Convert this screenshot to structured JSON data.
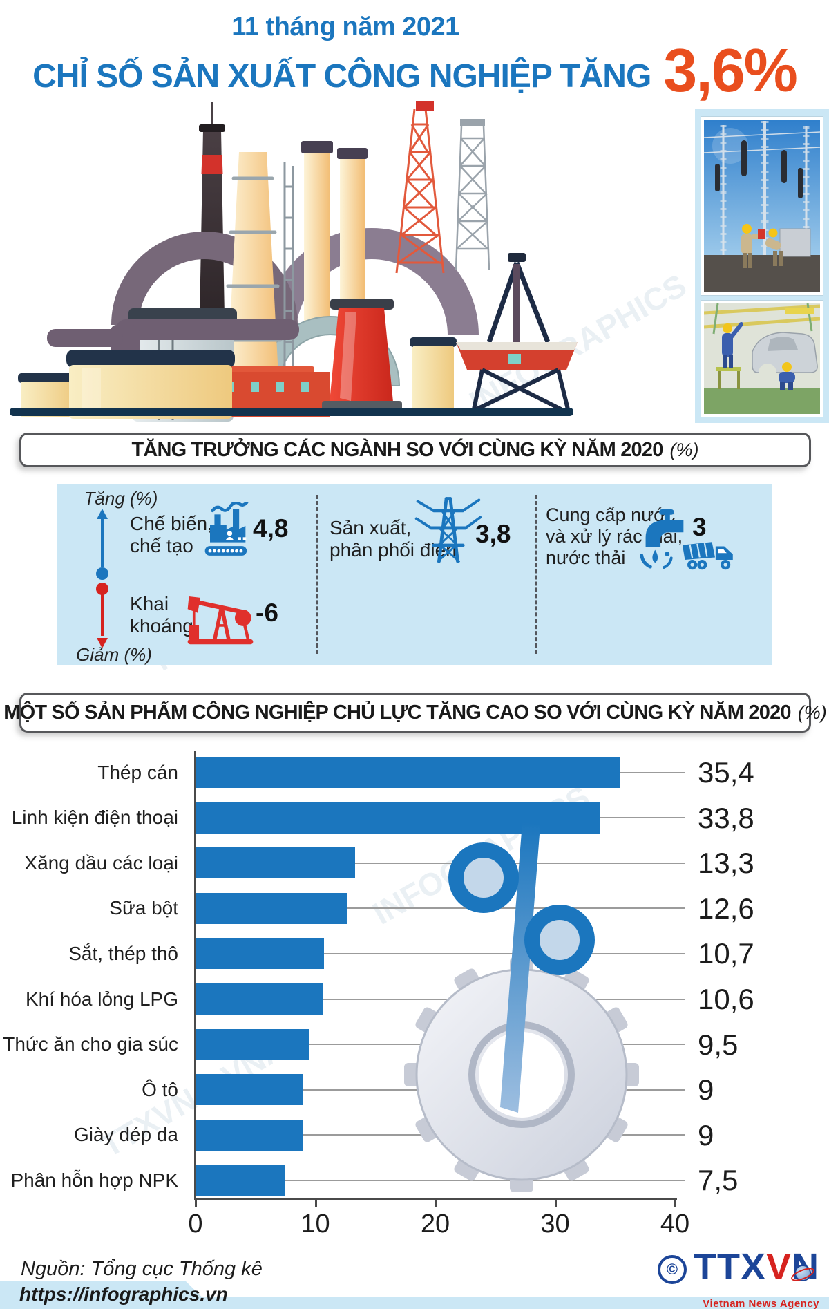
{
  "header": {
    "subtitle": "11 tháng năm 2021",
    "title": "CHỈ SỐ SẢN XUẤT CÔNG NGHIỆP TĂNG",
    "highlight": "3,6%"
  },
  "watermark": {
    "text1": "TTXVN – VNA",
    "text2": "INFOGRAPHICS"
  },
  "chart_data": [
    {
      "type": "pictogram",
      "title": "TĂNG TRƯỞNG CÁC NGÀNH SO VỚI CÙNG KỲ NĂM 2020",
      "title_suffix": "(%)",
      "axis_up_label": "Tăng (%)",
      "axis_down_label": "Giảm (%)",
      "items": [
        {
          "label": "Chế biến,\nchế tạo",
          "value": 4.8,
          "value_label": "4,8",
          "icon": "factory-icon",
          "direction": "up"
        },
        {
          "label": "Sản xuất,\nphân phối điện",
          "value": 3.8,
          "value_label": "3,8",
          "icon": "power-tower-icon",
          "direction": "up"
        },
        {
          "label": "Cung cấp nước\nvà xử lý rác thải,\nnước thải",
          "value": 3,
          "value_label": "3",
          "icon": "water-truck-icon",
          "direction": "up"
        },
        {
          "label": "Khai\nkhoáng",
          "value": -6,
          "value_label": "-6",
          "icon": "oil-pump-icon",
          "direction": "down"
        }
      ]
    },
    {
      "type": "bar",
      "orientation": "horizontal",
      "title": "MỘT SỐ SẢN PHẨM CÔNG NGHIỆP CHỦ LỰC TĂNG CAO SO VỚI CÙNG KỲ NĂM 2020",
      "title_suffix": "(%)",
      "categories": [
        "Thép cán",
        "Linh kiện điện thoại",
        "Xăng dầu các loại",
        "Sữa bột",
        "Sắt, thép thô",
        "Khí hóa lỏng LPG",
        "Thức ăn cho gia súc",
        "Ô tô",
        "Giày dép da",
        "Phân hỗn hợp NPK"
      ],
      "values": [
        35.4,
        33.8,
        13.3,
        12.6,
        10.7,
        10.6,
        9.5,
        9,
        9,
        7.5
      ],
      "value_labels": [
        "35,4",
        "33,8",
        "13,3",
        "12,6",
        "10,7",
        "10,6",
        "9,5",
        "9",
        "9",
        "7,5"
      ],
      "xlim": [
        0,
        40
      ],
      "x_ticks": [
        0,
        10,
        20,
        30,
        40
      ],
      "bar_color": "#1B76BE",
      "grid": false,
      "legend": "none"
    }
  ],
  "footer": {
    "source": "Nguồn: Tổng cục Thống kê",
    "url": "https://infographics.vn",
    "copyright": "©",
    "logo_t1": "TTX",
    "logo_v": "V",
    "logo_n": "N",
    "logo_sub": "Vietnam News Agency"
  },
  "colors": {
    "blue": "#1B76BE",
    "red": "#E94E1E",
    "panel": "#CBE7F5",
    "bar": "#1B76BE",
    "logo_blue": "#1C4598",
    "logo_red": "#D6231F"
  }
}
